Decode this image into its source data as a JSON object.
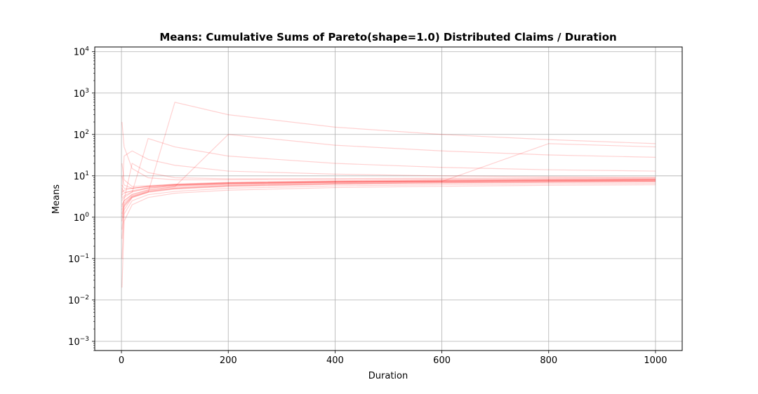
{
  "chart_data": {
    "type": "line",
    "title": "Means: Cumulative Sums of Pareto(shape=1.0) Distributed Claims / Duration",
    "xlabel": "Duration",
    "ylabel": "Means",
    "xlim": [
      -50,
      1050
    ],
    "ylim": [
      0.0006,
      13000
    ],
    "yscale": "log",
    "grid": true,
    "x_ticks": [
      {
        "value": 0,
        "label": "0"
      },
      {
        "value": 200,
        "label": "200"
      },
      {
        "value": 400,
        "label": "400"
      },
      {
        "value": 600,
        "label": "600"
      },
      {
        "value": 800,
        "label": "800"
      },
      {
        "value": 1000,
        "label": "1000"
      }
    ],
    "y_ticks": [
      {
        "value": 0.001,
        "base": "10",
        "exp": "−3"
      },
      {
        "value": 0.01,
        "base": "10",
        "exp": "−2"
      },
      {
        "value": 0.1,
        "base": "10",
        "exp": "−1"
      },
      {
        "value": 1,
        "base": "10",
        "exp": "0"
      },
      {
        "value": 10,
        "base": "10",
        "exp": "1"
      },
      {
        "value": 100,
        "base": "10",
        "exp": "2"
      },
      {
        "value": 1000,
        "base": "10",
        "exp": "3"
      },
      {
        "value": 10000,
        "base": "10",
        "exp": "4"
      }
    ],
    "series_color": "#ff0000",
    "series_opacity": 0.03,
    "series": [
      {
        "x": [
          1,
          5,
          20,
          50,
          100,
          200,
          400,
          600,
          800,
          1000
        ],
        "values": [
          0.02,
          0.8,
          2.0,
          3.0,
          3.8,
          4.5,
          5.2,
          5.6,
          5.9,
          6.1
        ]
      },
      {
        "x": [
          1,
          5,
          20,
          50,
          100,
          200,
          400,
          600,
          800,
          1000
        ],
        "values": [
          0.1,
          1.2,
          2.5,
          3.5,
          4.2,
          5.0,
          5.7,
          6.1,
          6.4,
          6.6
        ]
      },
      {
        "x": [
          1,
          5,
          20,
          50,
          100,
          200,
          400,
          600,
          800,
          1000
        ],
        "values": [
          0.3,
          1.5,
          3.0,
          4.0,
          4.8,
          5.5,
          6.2,
          6.6,
          6.9,
          7.1
        ]
      },
      {
        "x": [
          1,
          5,
          20,
          50,
          100,
          200,
          400,
          600,
          800,
          1000
        ],
        "values": [
          1.0,
          2.0,
          3.2,
          4.2,
          5.0,
          5.8,
          6.5,
          6.9,
          7.2,
          7.4
        ]
      },
      {
        "x": [
          1,
          5,
          20,
          50,
          100,
          200,
          400,
          600,
          800,
          1000
        ],
        "values": [
          2.0,
          2.5,
          3.6,
          4.6,
          5.4,
          6.2,
          6.9,
          7.3,
          7.6,
          7.8
        ]
      },
      {
        "x": [
          1,
          5,
          20,
          50,
          100,
          200,
          400,
          600,
          800,
          1000
        ],
        "values": [
          5.0,
          4.0,
          4.2,
          5.0,
          5.8,
          6.5,
          7.1,
          7.4,
          7.7,
          7.9
        ]
      },
      {
        "x": [
          1,
          5,
          20,
          50,
          100,
          200,
          400,
          600,
          800,
          1000
        ],
        "values": [
          20,
          8.0,
          5.5,
          5.8,
          6.2,
          6.8,
          7.2,
          7.5,
          7.8,
          8.0
        ]
      },
      {
        "x": [
          1,
          5,
          20,
          50,
          100,
          200,
          400,
          600,
          800,
          1000
        ],
        "values": [
          200,
          50,
          15,
          9.0,
          8.0,
          8.0,
          8.2,
          8.4,
          8.5,
          8.6
        ]
      },
      {
        "x": [
          1,
          5,
          20,
          50,
          100,
          200,
          400,
          600,
          800,
          1000
        ],
        "values": [
          3.0,
          30,
          40,
          25,
          18,
          13,
          11,
          10,
          9.5,
          9.2
        ]
      },
      {
        "x": [
          1,
          5,
          20,
          50,
          100,
          200,
          400,
          600,
          800,
          1000
        ],
        "values": [
          2.5,
          3.0,
          4.0,
          80,
          50,
          30,
          20,
          16,
          14,
          13
        ]
      },
      {
        "x": [
          1,
          5,
          20,
          50,
          100,
          200,
          400,
          600,
          800,
          1000
        ],
        "values": [
          1.5,
          2.5,
          3.5,
          4.5,
          5.5,
          100,
          55,
          40,
          32,
          28
        ]
      },
      {
        "x": [
          1,
          5,
          20,
          50,
          100,
          200,
          400,
          600,
          800,
          1000
        ],
        "values": [
          4.0,
          4.5,
          5.0,
          5.5,
          6.0,
          6.5,
          7.0,
          7.3,
          60,
          50
        ]
      },
      {
        "x": [
          1,
          5,
          20,
          50,
          100,
          200,
          400,
          600,
          800,
          1000
        ],
        "values": [
          0.5,
          1.8,
          3.0,
          4.0,
          600,
          300,
          150,
          100,
          75,
          60
        ]
      },
      {
        "x": [
          1,
          5,
          20,
          50,
          100,
          200,
          400,
          600,
          800,
          1000
        ],
        "values": [
          1.2,
          2.2,
          3.3,
          4.3,
          5.1,
          5.9,
          6.6,
          7.0,
          7.3,
          7.5
        ]
      },
      {
        "x": [
          1,
          5,
          20,
          50,
          100,
          200,
          400,
          600,
          800,
          1000
        ],
        "values": [
          3.5,
          3.8,
          4.4,
          5.2,
          6.0,
          6.8,
          7.4,
          7.8,
          8.1,
          8.3
        ]
      },
      {
        "x": [
          1,
          5,
          20,
          50,
          100,
          200,
          400,
          600,
          800,
          1000
        ],
        "values": [
          0.8,
          1.9,
          3.1,
          4.1,
          4.9,
          5.7,
          6.4,
          6.8,
          7.1,
          7.3
        ]
      },
      {
        "x": [
          1,
          5,
          20,
          50,
          100,
          200,
          400,
          600,
          800,
          1000
        ],
        "values": [
          10,
          6.0,
          5.0,
          5.6,
          6.3,
          7.0,
          7.6,
          8.0,
          8.3,
          8.5
        ]
      },
      {
        "x": [
          1,
          5,
          20,
          50,
          100,
          200,
          400,
          600,
          800,
          1000
        ],
        "values": [
          1.8,
          2.6,
          20,
          12,
          9.0,
          8.5,
          8.6,
          8.8,
          9.0,
          9.1
        ]
      },
      {
        "x": [
          1,
          5,
          20,
          50,
          100,
          200,
          400,
          600,
          800,
          1000
        ],
        "values": [
          2.8,
          3.3,
          4.1,
          5.0,
          5.7,
          6.4,
          7.0,
          7.4,
          7.6,
          7.8
        ]
      },
      {
        "x": [
          1,
          5,
          20,
          50,
          100,
          200,
          400,
          600,
          800,
          1000
        ],
        "values": [
          6.0,
          5.0,
          5.0,
          5.5,
          6.1,
          6.7,
          7.3,
          7.6,
          7.9,
          8.1
        ]
      }
    ]
  }
}
